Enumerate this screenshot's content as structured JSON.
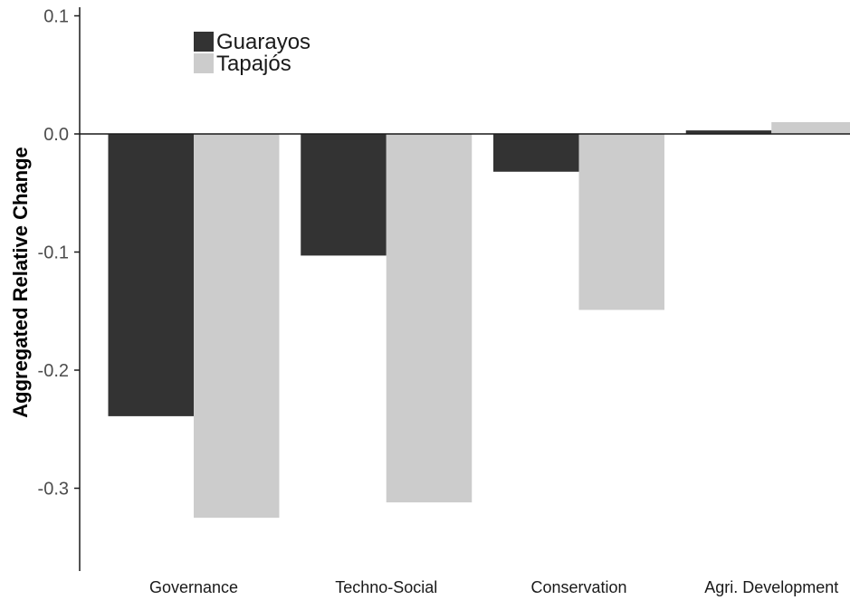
{
  "chart_data": {
    "type": "bar",
    "title": "",
    "xlabel": "",
    "ylabel": "Aggregated Relative Change",
    "categories": [
      "Governance",
      "Techno-Social",
      "Conservation",
      "Agri. Development"
    ],
    "series": [
      {
        "name": "Guarayos",
        "color": "#333333",
        "values": [
          -0.239,
          -0.103,
          -0.032,
          0.003
        ]
      },
      {
        "name": "Tapajós",
        "color": "#cccccc",
        "values": [
          -0.325,
          -0.312,
          -0.149,
          0.01
        ]
      }
    ],
    "y_ticks": [
      0.1,
      0.0,
      -0.1,
      -0.2,
      -0.3
    ],
    "y_tick_labels": [
      "0.1",
      "0.0",
      "-0.1",
      "-0.2",
      "-0.3"
    ],
    "ylim": [
      -0.37,
      0.11
    ],
    "grid": false,
    "legend_position": "top-left"
  }
}
